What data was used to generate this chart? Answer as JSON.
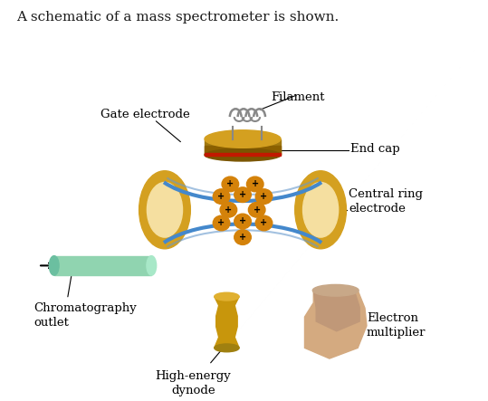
{
  "title": "A schematic of a mass spectrometer is shown.",
  "title_fontsize": 11,
  "background_color": "#ffffff",
  "labels": {
    "filament": "Filament",
    "gate_electrode": "Gate electrode",
    "end_cap": "End cap",
    "central_ring": "Central ring\nelectrode",
    "chromatography": "Chromatography\noutlet",
    "high_energy": "High-energy\ndynode",
    "electron_mult": "Electron\nmultiplier"
  },
  "colors": {
    "end_cap_top": "#8B6914",
    "end_cap_body": "#C8960C",
    "end_cap_gradient": "#A0720A",
    "ring_electrode": "#D4A020",
    "ring_inner": "#F5DFA0",
    "ion_color": "#D4820A",
    "arc_color": "#4488CC",
    "arc_color2": "#6699CC",
    "filament_color": "#888888",
    "tube_color": "#90D4B0",
    "dynode_color": "#C8960C",
    "multiplier_color": "#D4AA80",
    "label_color": "#000000",
    "text_color": "#1a1a1a"
  }
}
